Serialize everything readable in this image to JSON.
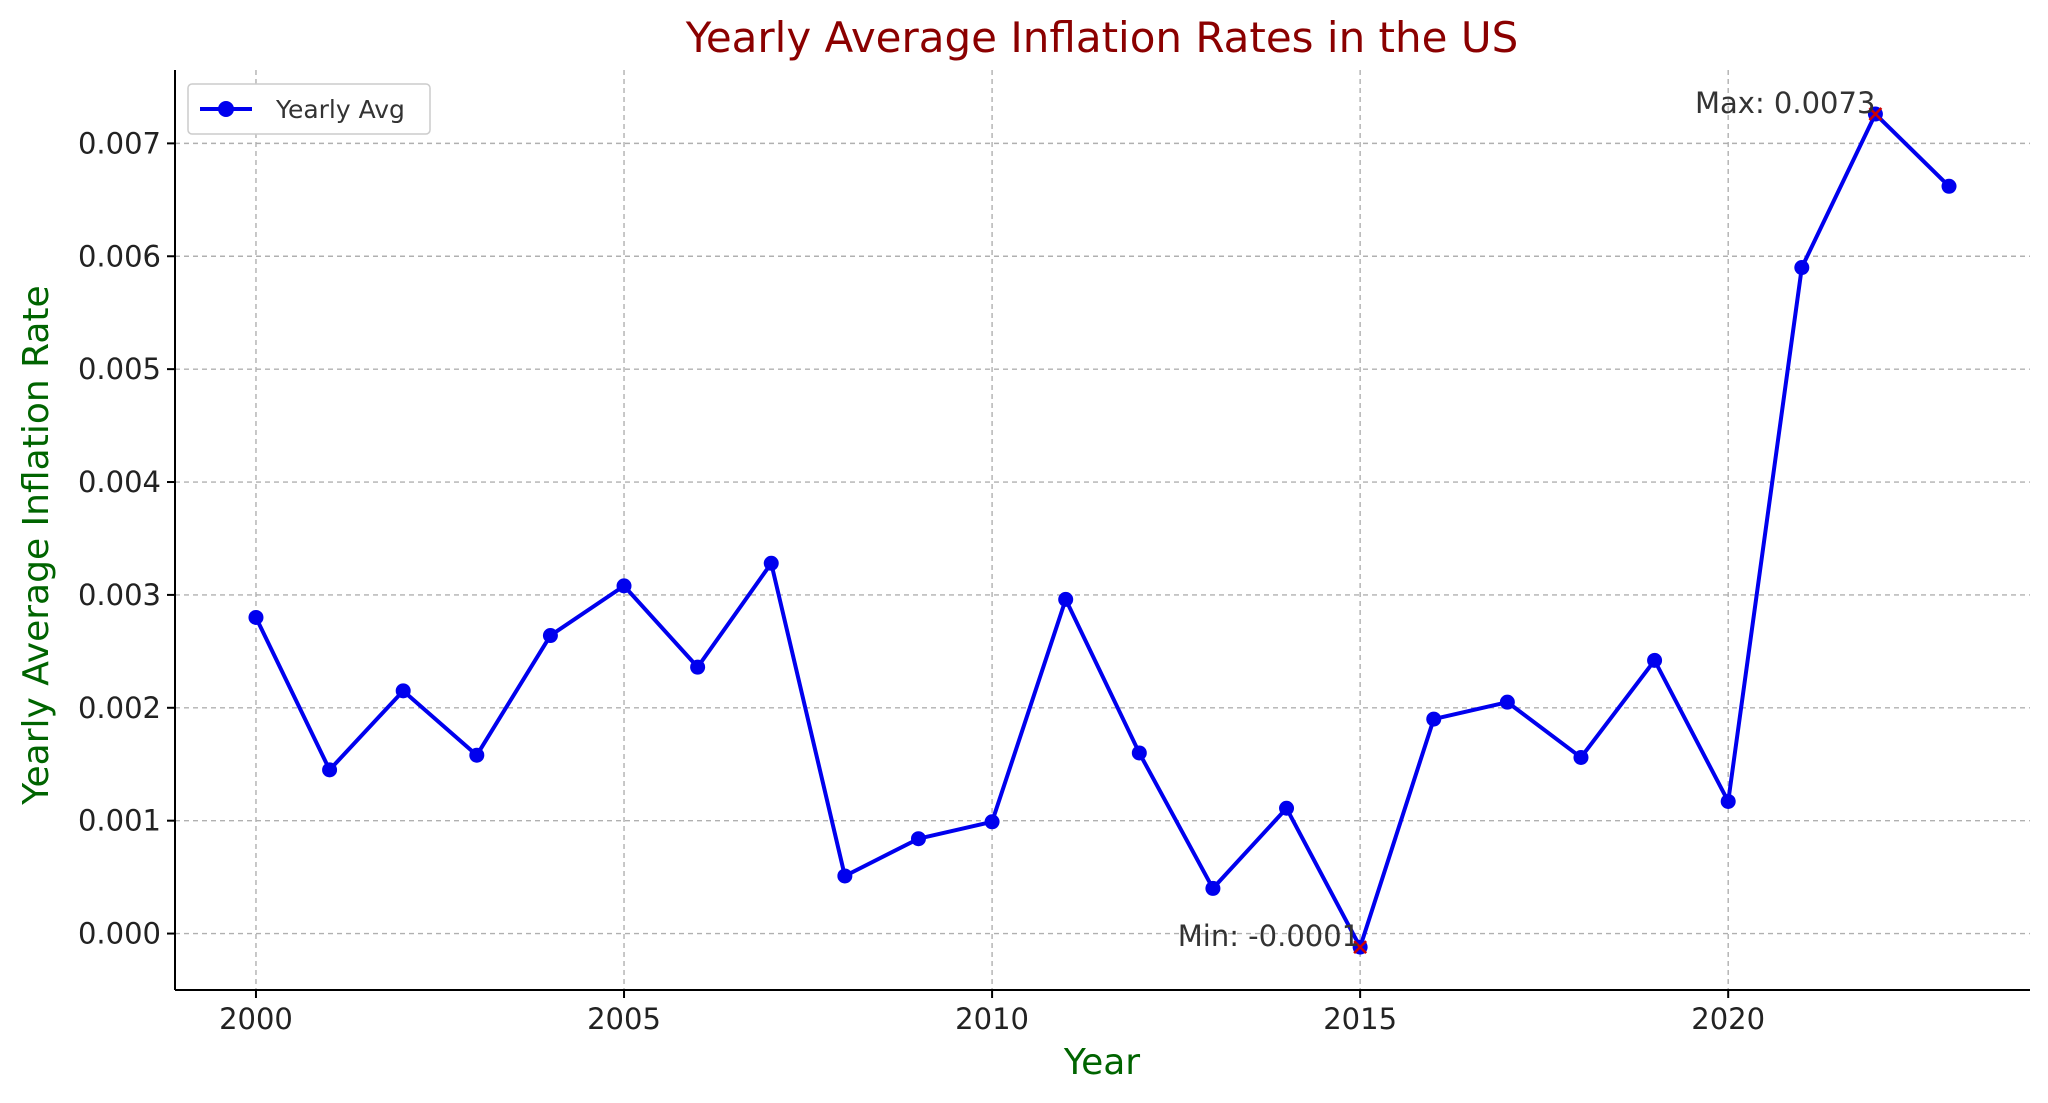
{
  "chart_data": {
    "type": "line",
    "title": "Yearly Average Inflation Rates in the US",
    "xlabel": "Year",
    "ylabel": "Yearly Average Inflation Rate",
    "xlim": [
      1998.9,
      2024.1
    ],
    "ylim": [
      -0.0005,
      0.00765
    ],
    "xticks": [
      2000,
      2005,
      2010,
      2015,
      2020
    ],
    "yticks": [
      0.0,
      0.001,
      0.002,
      0.003,
      0.004,
      0.005,
      0.006,
      0.007
    ],
    "ytick_labels": [
      "0.000",
      "0.001",
      "0.002",
      "0.003",
      "0.004",
      "0.005",
      "0.006",
      "0.007"
    ],
    "grid": true,
    "legend_position": "top-left",
    "series": [
      {
        "name": "Yearly Avg",
        "color": "#0000ee",
        "marker": "circle",
        "x": [
          2000,
          2001,
          2002,
          2003,
          2004,
          2005,
          2006,
          2007,
          2008,
          2009,
          2010,
          2011,
          2012,
          2013,
          2014,
          2015,
          2016,
          2017,
          2018,
          2019,
          2020,
          2021,
          2022,
          2023
        ],
        "y": [
          0.0028,
          0.00145,
          0.00215,
          0.00158,
          0.00264,
          0.00308,
          0.00236,
          0.00328,
          0.00051,
          0.00084,
          0.00099,
          0.00296,
          0.0016,
          0.0004,
          0.00111,
          -0.00012,
          0.0019,
          0.00205,
          0.00156,
          0.00242,
          0.00117,
          0.0059,
          0.00726,
          0.00662
        ]
      }
    ],
    "annotations": [
      {
        "text": "Max: 0.0073",
        "x": 2022,
        "y": 0.00726,
        "marker_color": "#cc0000"
      },
      {
        "text": "Min: -0.0001",
        "x": 2015,
        "y": -0.00012,
        "marker_color": "#cc0000"
      }
    ]
  }
}
